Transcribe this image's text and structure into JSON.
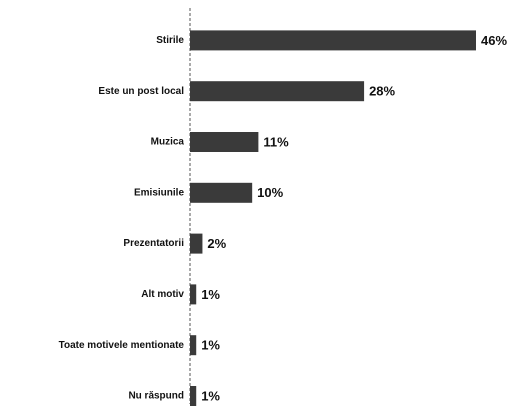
{
  "chart_data": {
    "type": "bar",
    "orientation": "horizontal",
    "categories": [
      "Stirile",
      "Este un post local",
      "Muzica",
      "Emisiunile",
      "Prezentatorii",
      "Alt motiv",
      "Toate motivele mentionate",
      "Nu răspund"
    ],
    "values": [
      46,
      28,
      11,
      10,
      2,
      1,
      1,
      1
    ],
    "value_labels": [
      "46%",
      "28%",
      "11%",
      "10%",
      "2%",
      "1%",
      "1%",
      "1%"
    ],
    "color": "#3a3a3a"
  }
}
